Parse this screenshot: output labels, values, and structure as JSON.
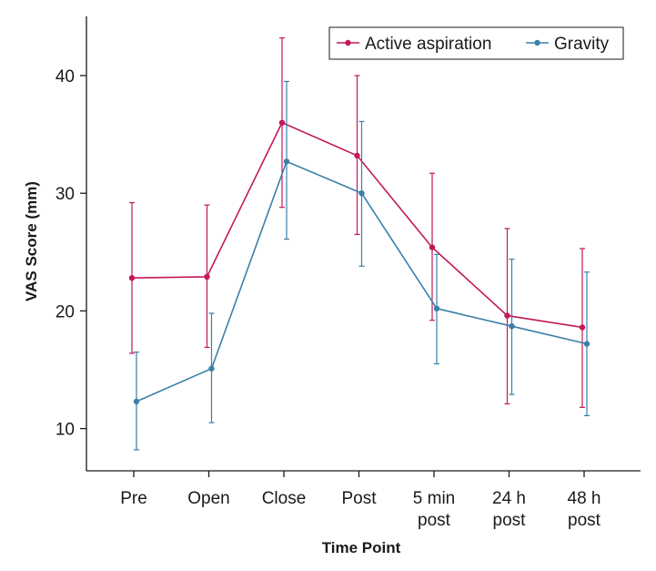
{
  "chart_data": {
    "type": "line",
    "xlabel": "Time Point",
    "ylabel": "VAS Score (mm)",
    "categories": [
      [
        "Pre"
      ],
      [
        "Open"
      ],
      [
        "Close"
      ],
      [
        "Post"
      ],
      [
        "5 min",
        "post"
      ],
      [
        "24 h",
        "post"
      ],
      [
        "48 h",
        "post"
      ]
    ],
    "ylim": [
      5,
      45
    ],
    "yticks": [
      10,
      20,
      30,
      40
    ],
    "grid": false,
    "legend_position": "top-right",
    "series": [
      {
        "name": "Active aspiration",
        "color": "#c2185b",
        "values": [
          22.8,
          22.9,
          36.0,
          33.2,
          25.4,
          19.6,
          18.6
        ],
        "err_low": [
          16.4,
          16.9,
          28.8,
          26.5,
          19.2,
          12.1,
          11.8
        ],
        "err_high": [
          29.2,
          29.0,
          43.2,
          40.0,
          31.7,
          27.0,
          25.3
        ]
      },
      {
        "name": "Gravity",
        "color": "#3a80a8",
        "values": [
          12.3,
          15.1,
          32.7,
          30.0,
          20.2,
          18.7,
          17.2
        ],
        "err_low": [
          8.2,
          10.5,
          26.1,
          23.8,
          15.5,
          12.9,
          11.1
        ],
        "err_high": [
          16.5,
          19.8,
          39.5,
          36.1,
          24.8,
          24.4,
          23.3
        ]
      }
    ]
  }
}
